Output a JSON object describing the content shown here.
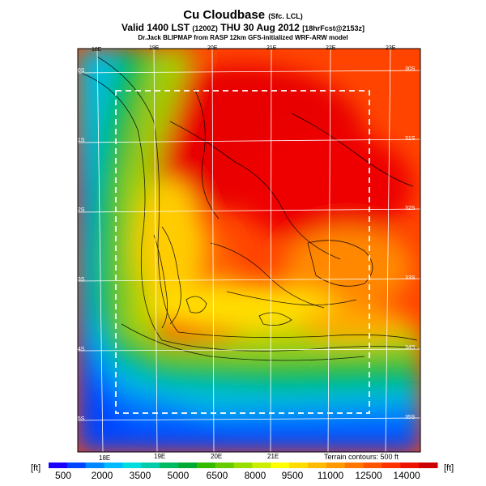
{
  "header": {
    "title": "Cu Cloudbase",
    "title_tag": "(Sfc. LCL)",
    "valid_main": "Valid 1400 LST",
    "valid_small1": "(1200Z)",
    "valid_date": "THU 30 Aug 2012",
    "valid_small2": "[18hrFcst@2153z]",
    "credit": "Dr.Jack BLIPMAP from RASP 12km GFS-initialized WRF-ARW model"
  },
  "map": {
    "lon_labels_top": [
      "18E",
      "19E",
      "20E",
      "21E",
      "22E",
      "23E"
    ],
    "lon_labels_bottom": [
      "18E",
      "19E",
      "20E",
      "21E"
    ],
    "lat_labels_left": [
      "30S",
      "31S",
      "32S",
      "33S",
      "34S",
      "35S"
    ],
    "lat_labels_right": [
      "30S",
      "31S",
      "32S",
      "33S",
      "34S",
      "35S"
    ],
    "terrain_note": "Terrain contours: 500 ft"
  },
  "colorbar": {
    "unit_left": "[ft]",
    "unit_right": "[ft]",
    "labels": [
      "500",
      "2000",
      "3500",
      "5000",
      "6500",
      "8000",
      "9500",
      "11000",
      "12500",
      "14000"
    ],
    "colors": [
      "#1a00ff",
      "#0044ff",
      "#0088ff",
      "#00bbff",
      "#00dddd",
      "#00ccaa",
      "#00bb66",
      "#00aa33",
      "#33bb00",
      "#66cc00",
      "#99dd00",
      "#ccee00",
      "#ffff00",
      "#ffdd00",
      "#ffbb00",
      "#ff9900",
      "#ff7700",
      "#ff5500",
      "#ff3300",
      "#ee1100",
      "#cc0000"
    ]
  }
}
